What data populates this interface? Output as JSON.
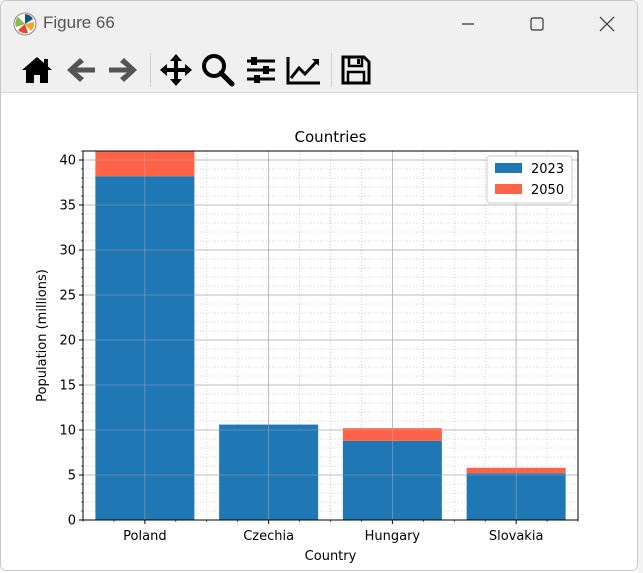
{
  "window": {
    "title": "Figure 66"
  },
  "toolbar": {
    "buttons": [
      {
        "name": "home-button",
        "icon": "home-icon"
      },
      {
        "name": "back-button",
        "icon": "arrow-left-icon"
      },
      {
        "name": "forward-button",
        "icon": "arrow-right-icon"
      },
      {
        "name": "pan-button",
        "icon": "move-icon"
      },
      {
        "name": "zoom-button",
        "icon": "magnifier-icon"
      },
      {
        "name": "configure-subplots-button",
        "icon": "sliders-icon"
      },
      {
        "name": "edit-axes-button",
        "icon": "line-chart-icon"
      },
      {
        "name": "save-button",
        "icon": "floppy-disk-icon"
      }
    ]
  },
  "colors": {
    "series_2023": "#1f77b4",
    "series_2050": "#ff6347"
  },
  "chart_data": {
    "type": "bar",
    "stacked": true,
    "title": "Countries",
    "xlabel": "Country",
    "ylabel": "Population (millions)",
    "categories": [
      "Poland",
      "Czechia",
      "Hungary",
      "Slovakia"
    ],
    "ylim": [
      0,
      41
    ],
    "yticks": [
      0,
      5,
      10,
      15,
      20,
      25,
      30,
      35,
      40
    ],
    "grid": true,
    "legend_position": "top-right",
    "series": [
      {
        "name": "2023",
        "values": [
          38.2,
          10.6,
          8.8,
          5.2
        ]
      },
      {
        "name": "2050",
        "values": [
          2.8,
          0,
          1.4,
          0.6
        ]
      }
    ]
  }
}
